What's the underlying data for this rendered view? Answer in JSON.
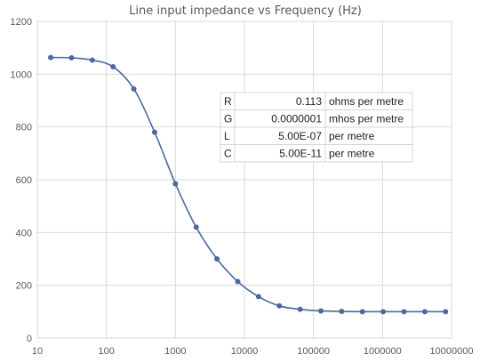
{
  "chart_data": {
    "type": "scatter",
    "title": "Line input impedance vs Frequency (Hz)",
    "xlabel": "",
    "ylabel": "",
    "x_scale": "log",
    "xlim": [
      10,
      10000000
    ],
    "ylim": [
      0,
      1200
    ],
    "x_ticks": [
      "10",
      "100",
      "1000",
      "10000",
      "100000",
      "1000000",
      "10000000"
    ],
    "y_ticks": [
      "0",
      "200",
      "400",
      "600",
      "800",
      "1000",
      "1200"
    ],
    "grid": true,
    "legend": "none",
    "colors": {
      "series": "#4a6a9c",
      "grid": "#d9d9d9",
      "text": "#595959"
    },
    "series": [
      {
        "x": [
          15.625,
          31.25,
          62.5,
          125,
          250,
          500,
          1000,
          2000,
          4000,
          8000,
          16000,
          32000,
          64000,
          128000,
          256000,
          512000,
          1024000,
          2048000,
          4096000,
          8192000
        ],
        "y": [
          1063,
          1062,
          1053,
          1028,
          944,
          780,
          585,
          420,
          300,
          214,
          157,
          122,
          109,
          103,
          101,
          100,
          100,
          100,
          100,
          100
        ]
      }
    ]
  },
  "parameters": [
    {
      "symbol": "R",
      "value": "0.113",
      "unit": "ohms per metre"
    },
    {
      "symbol": "G",
      "value": "0.0000001",
      "unit": "mhos per metre"
    },
    {
      "symbol": "L",
      "value": "5.00E-07",
      "unit": "per metre"
    },
    {
      "symbol": "C",
      "value": "5.00E-11",
      "unit": "per metre"
    }
  ]
}
